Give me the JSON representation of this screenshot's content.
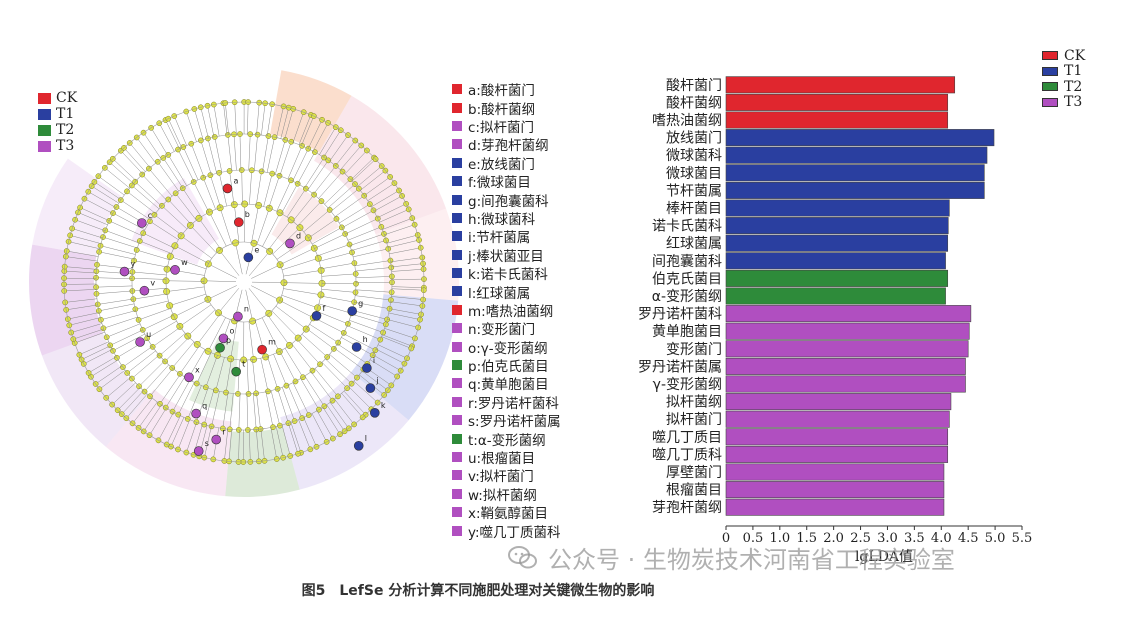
{
  "groups": [
    {
      "label": "CK",
      "color": "#e0262e"
    },
    {
      "label": "T1",
      "color": "#2a3fa0"
    },
    {
      "label": "T2",
      "color": "#2e8b3a"
    },
    {
      "label": "T3",
      "color": "#b04fc0"
    }
  ],
  "taxa_legend": [
    {
      "label": "a:酸杆菌门",
      "group": 0
    },
    {
      "label": "b:酸杆菌纲",
      "group": 0
    },
    {
      "label": "c:拟杆菌门",
      "group": 3
    },
    {
      "label": "d:芽孢杆菌纲",
      "group": 3
    },
    {
      "label": "e:放线菌门",
      "group": 1
    },
    {
      "label": "f:微球菌目",
      "group": 1
    },
    {
      "label": "g:间孢囊菌科",
      "group": 1
    },
    {
      "label": "h:微球菌科",
      "group": 1
    },
    {
      "label": "i:节杆菌属",
      "group": 1
    },
    {
      "label": "j:棒状菌亚目",
      "group": 1
    },
    {
      "label": "k:诺卡氏菌科",
      "group": 1
    },
    {
      "label": "l:红球菌属",
      "group": 1
    },
    {
      "label": "m:嗜热油菌纲",
      "group": 0
    },
    {
      "label": "n:变形菌门",
      "group": 3
    },
    {
      "label": "o:γ-变形菌纲",
      "group": 3
    },
    {
      "label": "p:伯克氏菌目",
      "group": 2
    },
    {
      "label": "q:黄单胞菌目",
      "group": 3
    },
    {
      "label": "r:罗丹诺杆菌科",
      "group": 3
    },
    {
      "label": "s:罗丹诺杆菌属",
      "group": 3
    },
    {
      "label": "t:α-变形菌纲",
      "group": 2
    },
    {
      "label": "u:根瘤菌目",
      "group": 3
    },
    {
      "label": "v:拟杆菌门",
      "group": 3
    },
    {
      "label": "w:拟杆菌纲",
      "group": 3
    },
    {
      "label": "x:鞘氨醇菌目",
      "group": 3
    },
    {
      "label": "y:噬几丁质菌科",
      "group": 3
    }
  ],
  "chart_data": {
    "type": "bar",
    "orientation": "horizontal",
    "xlabel": "lgLDA值",
    "xlim": [
      0,
      5.5
    ],
    "xticks": [
      "0",
      "0.5",
      "1.0",
      "1.5",
      "2.0",
      "2.5",
      "3.0",
      "3.5",
      "4.0",
      "4.5",
      "5.0",
      "5.5"
    ],
    "categories": [
      "酸杆菌门",
      "酸杆菌纲",
      "嗜热油菌纲",
      "放线菌门",
      "微球菌科",
      "微球菌目",
      "节杆菌属",
      "棒杆菌目",
      "诺卡氏菌科",
      "红球菌属",
      "间孢囊菌科",
      "伯克氏菌目",
      "α-变形菌纲",
      "罗丹诺杆菌科",
      "黄单胞菌目",
      "变形菌门",
      "罗丹诺杆菌属",
      "γ-变形菌纲",
      "拟杆菌纲",
      "拟杆菌门",
      "噬几丁质目",
      "噬几丁质科",
      "厚壁菌门",
      "根瘤菌目",
      "芽孢杆菌纲"
    ],
    "values": [
      4.25,
      4.12,
      4.12,
      4.98,
      4.85,
      4.8,
      4.8,
      4.15,
      4.13,
      4.12,
      4.08,
      4.12,
      4.08,
      4.55,
      4.52,
      4.5,
      4.45,
      4.45,
      4.18,
      4.15,
      4.12,
      4.12,
      4.05,
      4.05,
      4.05
    ],
    "groups": [
      0,
      0,
      0,
      1,
      1,
      1,
      1,
      1,
      1,
      1,
      1,
      2,
      2,
      3,
      3,
      3,
      3,
      3,
      3,
      3,
      3,
      3,
      3,
      3,
      3
    ],
    "legend_placement": "top-right"
  },
  "cladogram_labels": [
    {
      "letter": "a",
      "group": 0
    },
    {
      "letter": "b",
      "group": 0
    },
    {
      "letter": "c",
      "group": 3
    },
    {
      "letter": "d",
      "group": 3
    },
    {
      "letter": "e",
      "group": 1
    },
    {
      "letter": "f",
      "group": 1
    },
    {
      "letter": "g",
      "group": 1
    },
    {
      "letter": "h",
      "group": 1
    },
    {
      "letter": "i",
      "group": 1
    },
    {
      "letter": "j",
      "group": 1
    },
    {
      "letter": "k",
      "group": 1
    },
    {
      "letter": "l",
      "group": 1
    },
    {
      "letter": "m",
      "group": 0
    },
    {
      "letter": "n",
      "group": 3
    },
    {
      "letter": "o",
      "group": 3
    },
    {
      "letter": "p",
      "group": 2
    },
    {
      "letter": "q",
      "group": 3
    },
    {
      "letter": "r",
      "group": 3
    },
    {
      "letter": "s",
      "group": 3
    },
    {
      "letter": "t",
      "group": 2
    },
    {
      "letter": "u",
      "group": 3
    },
    {
      "letter": "v",
      "group": 3
    },
    {
      "letter": "w",
      "group": 3
    },
    {
      "letter": "x",
      "group": 3
    },
    {
      "letter": "y",
      "group": 3
    }
  ],
  "caption": "图5　LefSe 分析计算不同施肥处理对关键微生物的影响",
  "watermark": "公众号 · 生物炭技术河南省工程实验室"
}
